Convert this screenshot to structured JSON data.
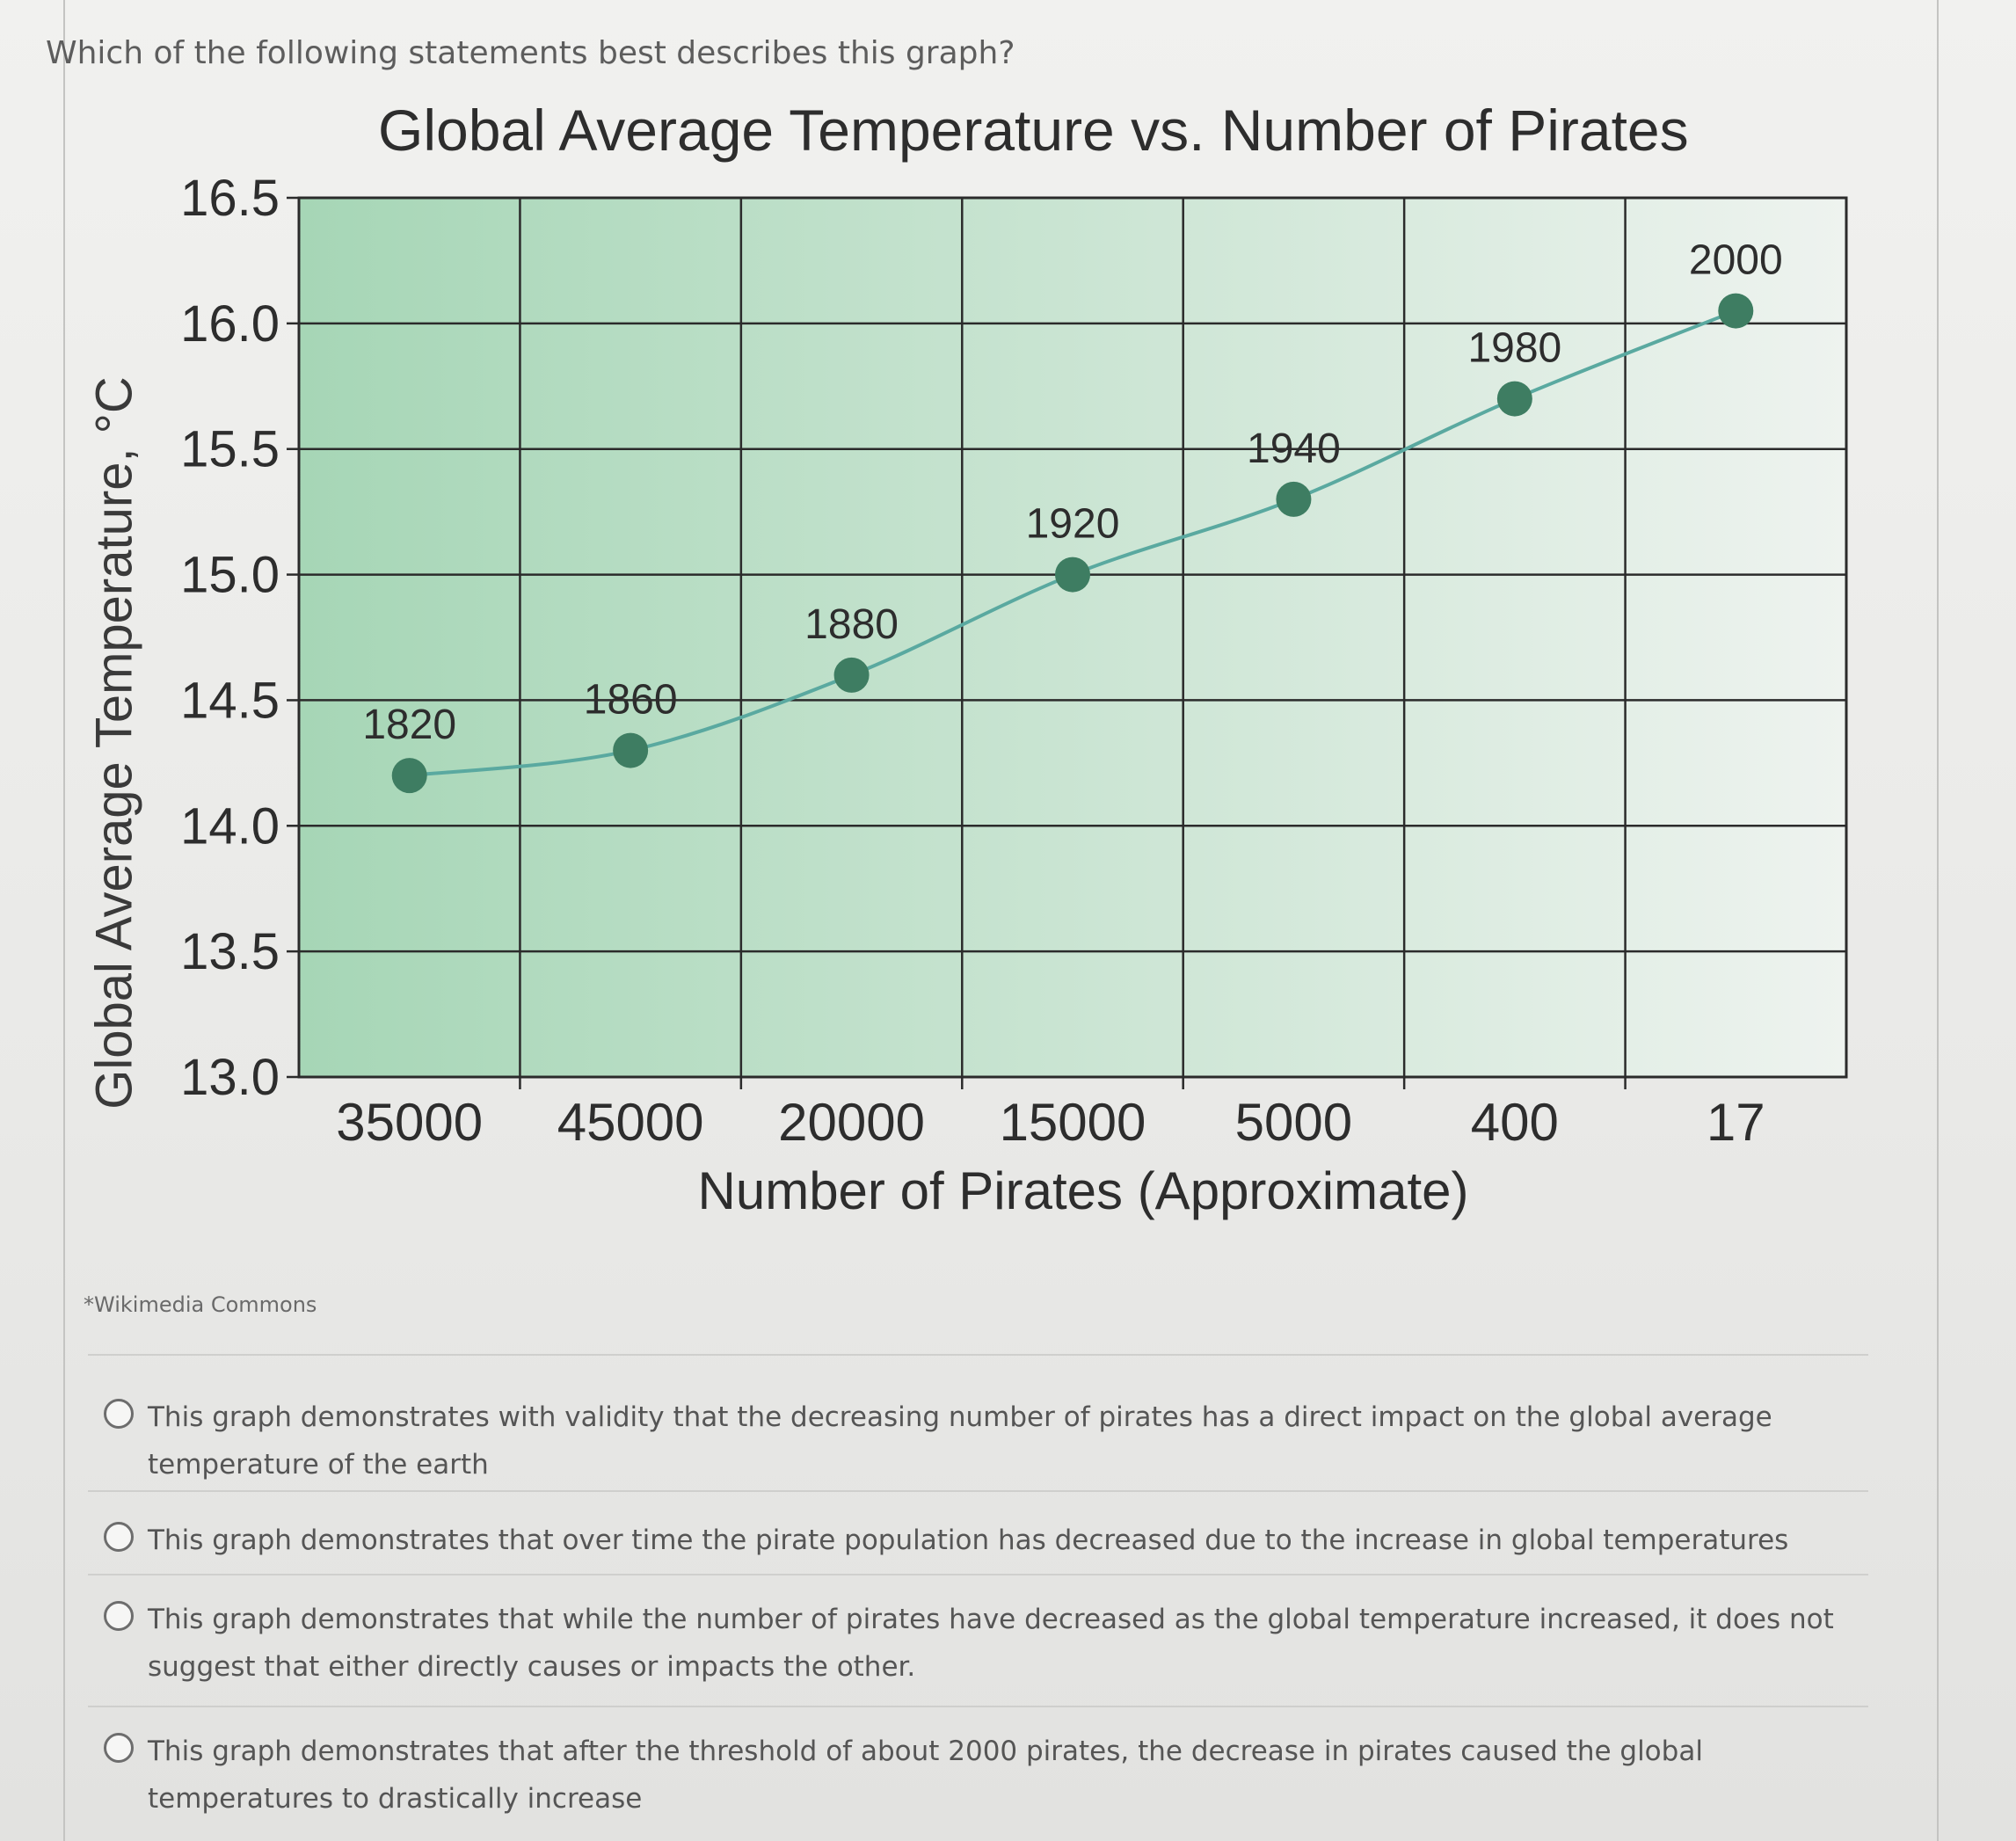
{
  "question": "Which of the following statements best describes this graph?",
  "credit": "*Wikimedia Commons",
  "chart_data": {
    "type": "line",
    "title": "Global Average Temperature vs. Number of Pirates",
    "xlabel": "Number of Pirates (Approximate)",
    "ylabel": "Global Average Temperature, °C",
    "categories": [
      "35000",
      "45000",
      "20000",
      "15000",
      "5000",
      "400",
      "17"
    ],
    "y_ticks": [
      "13.0",
      "13.5",
      "14.0",
      "14.5",
      "15.0",
      "15.5",
      "16.0",
      "16.5"
    ],
    "ylim": [
      13.0,
      16.5
    ],
    "point_labels": [
      "1820",
      "1860",
      "1880",
      "1920",
      "1940",
      "1980",
      "2000"
    ],
    "values": [
      14.2,
      14.3,
      14.6,
      15.0,
      15.3,
      15.7,
      16.05
    ],
    "grid": true,
    "colors": {
      "plot_bg_left": "#a6d6b6",
      "plot_bg_right": "#eef3ef",
      "line": "#5aa9a0",
      "marker": "#3e7d62"
    }
  },
  "options": [
    {
      "text": "This graph demonstrates with validity that the decreasing number of pirates has a direct impact on the global average temperature of the earth"
    },
    {
      "text": "This graph demonstrates that over time the pirate population has decreased due to the increase in global temperatures"
    },
    {
      "text": "This graph demonstrates that while the number of pirates have decreased as the global temperature increased, it does not suggest that either directly causes or impacts the other."
    },
    {
      "text": "This graph demonstrates that after the threshold of about 2000 pirates, the decrease in pirates caused the global temperatures to drastically increase"
    }
  ]
}
